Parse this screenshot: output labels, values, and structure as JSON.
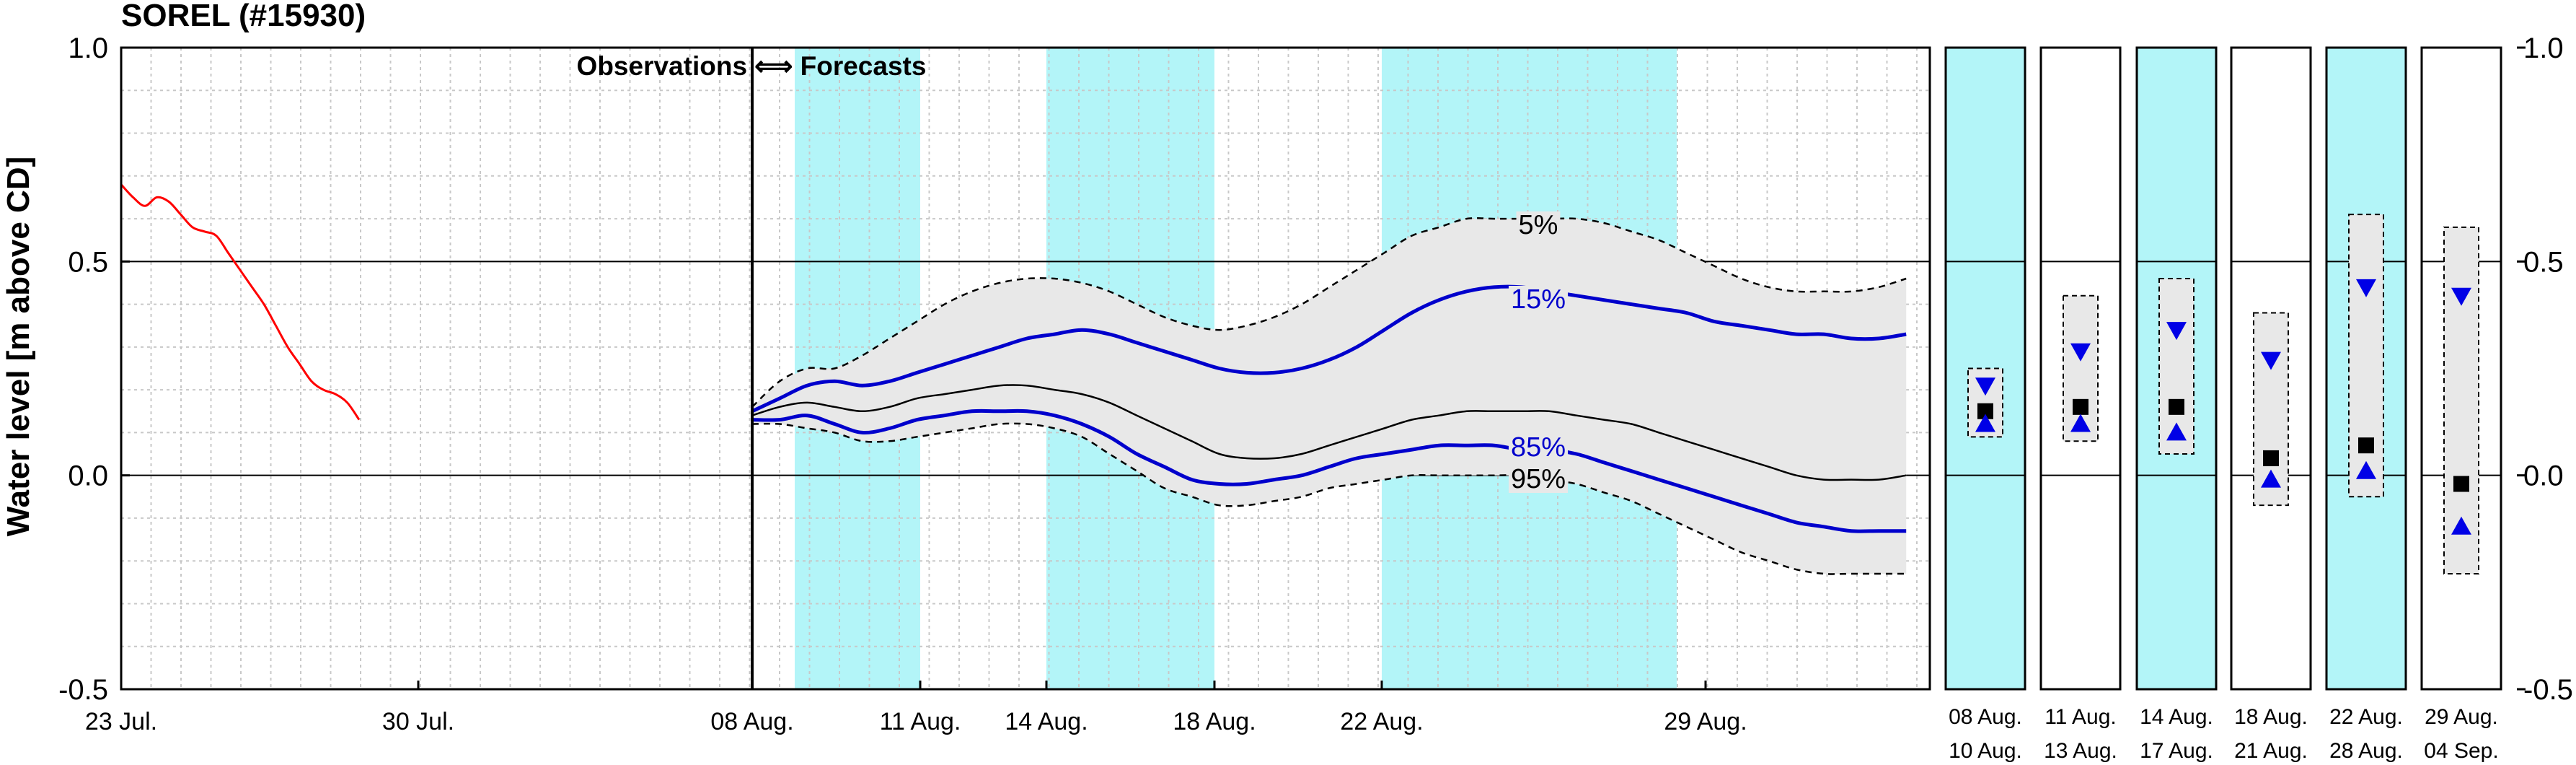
{
  "chart_data": {
    "type": "line",
    "title": "SOREL (#15930)",
    "ylabel": "Water level [m above CD]",
    "ylim": [
      -0.5,
      1.0
    ],
    "yticks": [
      "1.0",
      "0.5",
      "0.0",
      "-0.5"
    ],
    "transition_label": "Observations ⟺ Forecasts",
    "main_xticks": [
      "23 Jul.",
      "30 Jul.",
      "08 Aug.",
      "11 Aug.",
      "14 Aug.",
      "18 Aug.",
      "22 Aug.",
      "29 Aug."
    ],
    "grid": true,
    "highlight_color": "#b3f5f8",
    "band_color": "#e8e8e8",
    "observations": {
      "color": "#ff0000",
      "x": [
        0,
        1,
        2,
        3,
        4,
        5,
        6,
        7,
        8,
        9,
        10,
        11,
        12,
        13,
        14,
        15,
        16,
        17,
        18,
        19,
        20
      ],
      "y": [
        0.68,
        0.65,
        0.63,
        0.65,
        0.64,
        0.61,
        0.58,
        0.57,
        0.56,
        0.52,
        0.48,
        0.44,
        0.4,
        0.35,
        0.3,
        0.26,
        0.22,
        0.2,
        0.19,
        0.17,
        0.13
      ]
    },
    "forecast_x": [
      0,
      1,
      2,
      3,
      4,
      5,
      6,
      7,
      8,
      9,
      10,
      11,
      12,
      13,
      14,
      15,
      16,
      17,
      18,
      19,
      20,
      21,
      22,
      23,
      24,
      25,
      26,
      27,
      28,
      29,
      30,
      31,
      32,
      33,
      34,
      35,
      36,
      37,
      38,
      39,
      40,
      41,
      42
    ],
    "series": [
      {
        "name": "5%",
        "style": "dashed",
        "color": "#000000",
        "values": [
          0.16,
          0.22,
          0.25,
          0.25,
          0.28,
          0.32,
          0.36,
          0.4,
          0.43,
          0.45,
          0.46,
          0.46,
          0.45,
          0.43,
          0.4,
          0.37,
          0.35,
          0.34,
          0.35,
          0.37,
          0.4,
          0.44,
          0.48,
          0.52,
          0.56,
          0.58,
          0.6,
          0.6,
          0.6,
          0.6,
          0.6,
          0.59,
          0.57,
          0.55,
          0.52,
          0.49,
          0.46,
          0.44,
          0.43,
          0.43,
          0.43,
          0.44,
          0.46
        ]
      },
      {
        "name": "15%",
        "style": "solid",
        "color": "#0000cc",
        "values": [
          0.15,
          0.18,
          0.21,
          0.22,
          0.21,
          0.22,
          0.24,
          0.26,
          0.28,
          0.3,
          0.32,
          0.33,
          0.34,
          0.33,
          0.31,
          0.29,
          0.27,
          0.25,
          0.24,
          0.24,
          0.25,
          0.27,
          0.3,
          0.34,
          0.38,
          0.41,
          0.43,
          0.44,
          0.44,
          0.43,
          0.42,
          0.41,
          0.4,
          0.39,
          0.38,
          0.36,
          0.35,
          0.34,
          0.33,
          0.33,
          0.32,
          0.32,
          0.33
        ]
      },
      {
        "name": "median",
        "style": "solid",
        "color": "#000000",
        "values": [
          0.14,
          0.16,
          0.17,
          0.16,
          0.15,
          0.16,
          0.18,
          0.19,
          0.2,
          0.21,
          0.21,
          0.2,
          0.19,
          0.17,
          0.14,
          0.11,
          0.08,
          0.05,
          0.04,
          0.04,
          0.05,
          0.07,
          0.09,
          0.11,
          0.13,
          0.14,
          0.15,
          0.15,
          0.15,
          0.15,
          0.14,
          0.13,
          0.12,
          0.1,
          0.08,
          0.06,
          0.04,
          0.02,
          0.0,
          -0.01,
          -0.01,
          -0.01,
          0.0
        ]
      },
      {
        "name": "85%",
        "style": "solid",
        "color": "#0000cc",
        "values": [
          0.13,
          0.13,
          0.14,
          0.12,
          0.1,
          0.11,
          0.13,
          0.14,
          0.15,
          0.15,
          0.15,
          0.14,
          0.12,
          0.09,
          0.05,
          0.02,
          -0.01,
          -0.02,
          -0.02,
          -0.01,
          0.0,
          0.02,
          0.04,
          0.05,
          0.06,
          0.07,
          0.07,
          0.07,
          0.06,
          0.06,
          0.05,
          0.03,
          0.01,
          -0.01,
          -0.03,
          -0.05,
          -0.07,
          -0.09,
          -0.11,
          -0.12,
          -0.13,
          -0.13,
          -0.13
        ]
      },
      {
        "name": "95%",
        "style": "dashed",
        "color": "#000000",
        "values": [
          0.12,
          0.12,
          0.11,
          0.1,
          0.08,
          0.08,
          0.09,
          0.1,
          0.11,
          0.12,
          0.12,
          0.11,
          0.09,
          0.05,
          0.01,
          -0.03,
          -0.05,
          -0.07,
          -0.07,
          -0.06,
          -0.05,
          -0.03,
          -0.02,
          -0.01,
          0.0,
          0.0,
          0.0,
          0.0,
          0.0,
          -0.01,
          -0.02,
          -0.04,
          -0.06,
          -0.09,
          -0.12,
          -0.15,
          -0.18,
          -0.2,
          -0.22,
          -0.23,
          -0.23,
          -0.23,
          -0.23
        ]
      }
    ],
    "period_summaries": [
      {
        "start": "08 Aug.",
        "end": "10 Aug.",
        "highlight": true,
        "box_min": 0.09,
        "box_max": 0.25,
        "high": 0.21,
        "median": 0.15,
        "low": 0.12
      },
      {
        "start": "11 Aug.",
        "end": "13 Aug.",
        "highlight": false,
        "box_min": 0.08,
        "box_max": 0.42,
        "high": 0.29,
        "median": 0.16,
        "low": 0.12
      },
      {
        "start": "14 Aug.",
        "end": "17 Aug.",
        "highlight": true,
        "box_min": 0.05,
        "box_max": 0.46,
        "high": 0.34,
        "median": 0.16,
        "low": 0.1
      },
      {
        "start": "18 Aug.",
        "end": "21 Aug.",
        "highlight": false,
        "box_min": -0.07,
        "box_max": 0.38,
        "high": 0.27,
        "median": 0.04,
        "low": -0.01
      },
      {
        "start": "22 Aug.",
        "end": "28 Aug.",
        "highlight": true,
        "box_min": -0.05,
        "box_max": 0.61,
        "high": 0.44,
        "median": 0.07,
        "low": 0.01
      },
      {
        "start": "29 Aug.",
        "end": "04 Sep.",
        "highlight": false,
        "box_min": -0.23,
        "box_max": 0.58,
        "high": 0.42,
        "median": -0.02,
        "low": -0.12
      }
    ]
  }
}
